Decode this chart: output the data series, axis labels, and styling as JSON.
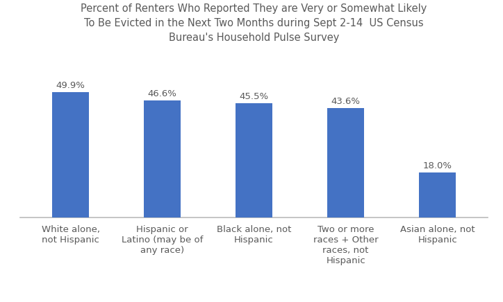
{
  "title": "Percent of Renters Who Reported They are Very or Somewhat Likely\nTo Be Evicted in the Next Two Months during Sept 2-14  US Census\nBureau's Household Pulse Survey",
  "categories": [
    "White alone,\nnot Hispanic",
    "Hispanic or\nLatino (may be of\nany race)",
    "Black alone, not\nHispanic",
    "Two or more\nraces + Other\nraces, not\nHispanic",
    "Asian alone, not\nHispanic"
  ],
  "values": [
    49.9,
    46.6,
    45.5,
    43.6,
    18.0
  ],
  "labels": [
    "49.9%",
    "46.6%",
    "45.5%",
    "43.6%",
    "18.0%"
  ],
  "bar_color": "#4472C4",
  "ylim": [
    0,
    65
  ],
  "title_fontsize": 10.5,
  "label_fontsize": 9.5,
  "tick_fontsize": 9.5,
  "background_color": "#FFFFFF",
  "bar_width": 0.4
}
